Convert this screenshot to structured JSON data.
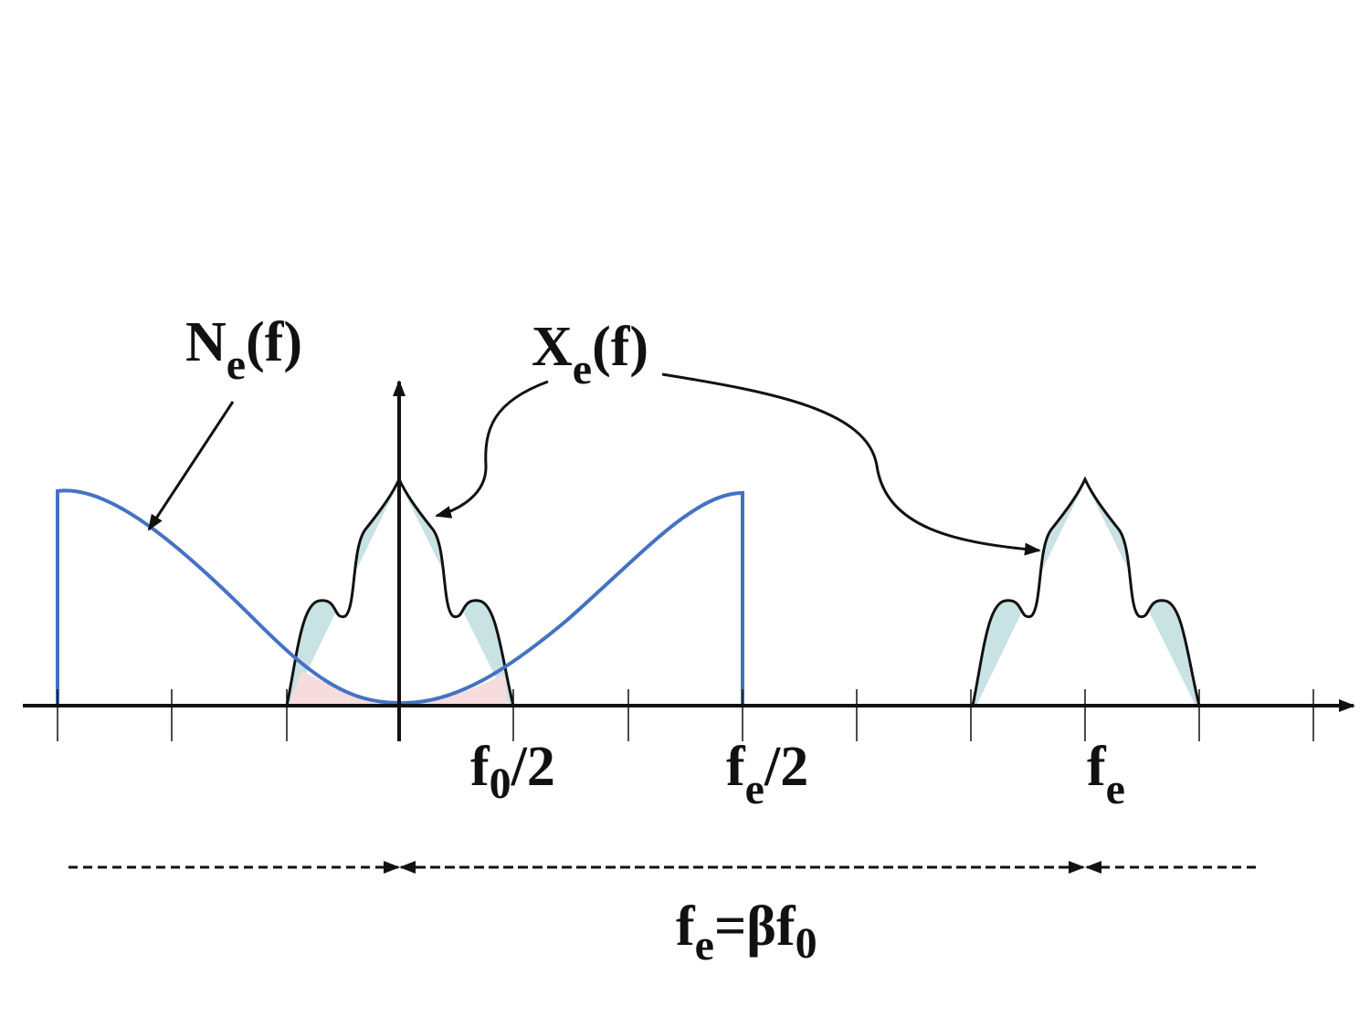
{
  "labels": {
    "noise": {
      "base": "N",
      "sub": "e",
      "rest": "(f)"
    },
    "signal": {
      "base": "X",
      "sub": "e",
      "rest": "(f)"
    },
    "half_f0": {
      "base": "f",
      "sub": "0",
      "rest": "/2"
    },
    "half_fe": {
      "base": "f",
      "sub": "e",
      "rest": "/2"
    },
    "fe": {
      "base": "f",
      "sub": "e"
    },
    "equation": {
      "base": "f",
      "sub": "e",
      "rest": "=βf",
      "sub2": "0"
    }
  }
}
